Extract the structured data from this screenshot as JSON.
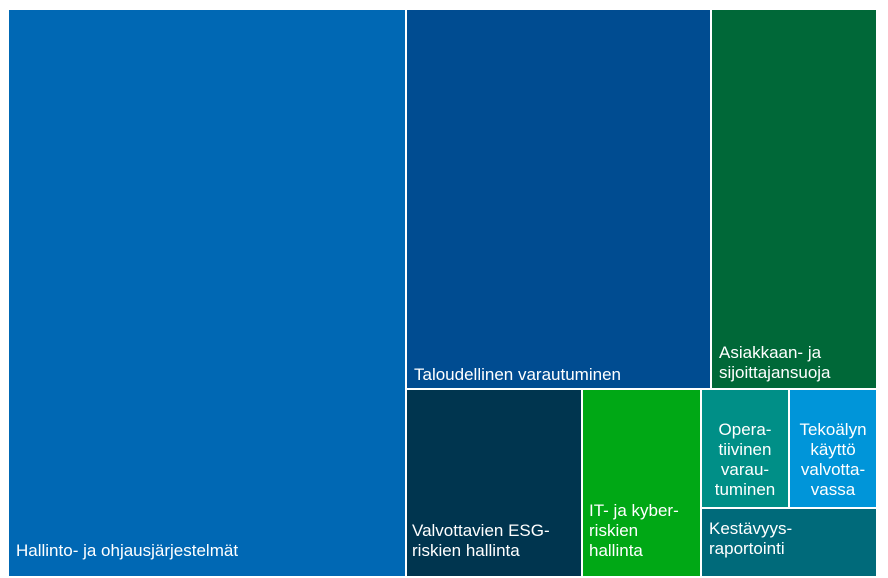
{
  "chart_data": {
    "type": "treemap",
    "items": [
      {
        "label": [
          "Hallinto- ja ohjausjärjestelmät"
        ],
        "color": "#0068b4"
      },
      {
        "label": [
          "Taloudellinen varautuminen"
        ],
        "color": "#004c91"
      },
      {
        "label": [
          "Asiakkaan- ja",
          "sijoittajansuoja"
        ],
        "color": "#006838"
      },
      {
        "label": [
          "Valvottavien ESG-",
          "riskien hallinta"
        ],
        "color": "#00354f"
      },
      {
        "label": [
          "IT- ja kyber-",
          "riskien",
          "hallinta"
        ],
        "color": "#00a815"
      },
      {
        "label": [
          "Opera-",
          "tiivinen",
          "varau-",
          "tuminen"
        ],
        "color": "#008f87"
      },
      {
        "label": [
          "Tekoälyn",
          "käyttö",
          "valvotta-",
          "vassa"
        ],
        "color": "#0095d9"
      },
      {
        "label": [
          "Kestävyys-",
          "raportointi"
        ],
        "color": "#006a7a"
      }
    ]
  }
}
